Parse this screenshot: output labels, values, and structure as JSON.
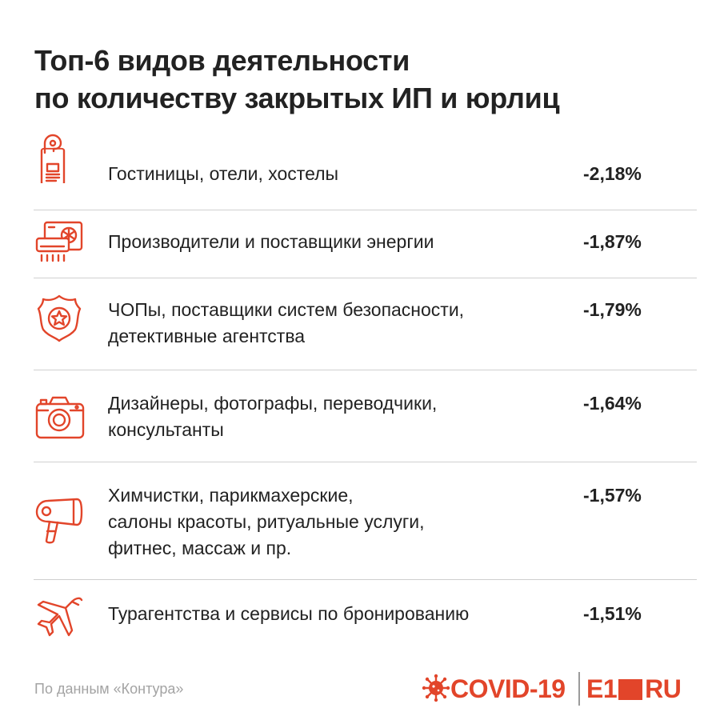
{
  "title": {
    "line1": "Топ-6 видов деятельности",
    "line2": "по количеству закрытых ИП и юрлиц"
  },
  "items": [
    {
      "icon": "door-hanger-icon",
      "lines": [
        "Гостиницы, отели, хостелы"
      ],
      "value": "-2,18%"
    },
    {
      "icon": "air-conditioner-icon",
      "lines": [
        "Производители и поставщики энергии"
      ],
      "value": "-1,87%"
    },
    {
      "icon": "police-badge-icon",
      "lines": [
        "ЧОПы, поставщики систем безопасности,",
        "детективные агентства"
      ],
      "value": "-1,79%"
    },
    {
      "icon": "camera-icon",
      "lines": [
        "Дизайнеры, фотографы, переводчики,",
        "консультанты"
      ],
      "value": "-1,64%"
    },
    {
      "icon": "hair-dryer-icon",
      "lines": [
        "Химчистки, парикмахерские,",
        "салоны красоты, ритуальные услуги,",
        "фитнес, массаж и пр."
      ],
      "value": "-1,57%"
    },
    {
      "icon": "airplane-icon",
      "lines": [
        "Турагентства и сервисы по бронированию"
      ],
      "value": "-1,51%"
    }
  ],
  "footer": {
    "source": "По данным «Контура»",
    "covid_label": "COVID-19",
    "brand_left": "E1",
    "brand_right": "RU"
  },
  "colors": {
    "accent": "#e2452a",
    "text": "#222222",
    "divider": "#cfcfcf",
    "muted": "#a3a3a3"
  }
}
